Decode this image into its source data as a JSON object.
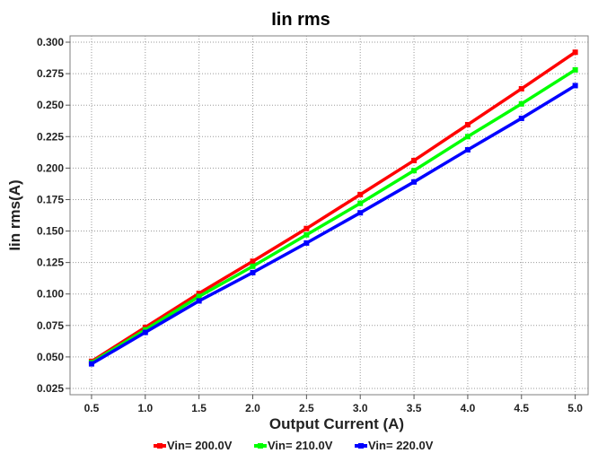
{
  "chart_data": {
    "type": "line",
    "title": "Iin rms",
    "xlabel": "Output Current (A)",
    "ylabel": "Iin rms(A)",
    "xlim": [
      0.3,
      5.12
    ],
    "ylim": [
      0.02,
      0.305
    ],
    "x": [
      0.5,
      1.0,
      1.5,
      2.0,
      2.5,
      3.0,
      3.5,
      4.0,
      4.5,
      5.0
    ],
    "x_tick_labels": [
      "0.5",
      "1.0",
      "1.5",
      "2.0",
      "2.5",
      "3.0",
      "3.5",
      "4.0",
      "4.5",
      "5.0"
    ],
    "y_ticks": [
      0.025,
      0.05,
      0.075,
      0.1,
      0.125,
      0.15,
      0.175,
      0.2,
      0.225,
      0.25,
      0.275,
      0.3
    ],
    "y_tick_labels": [
      "0.025",
      "0.050",
      "0.075",
      "0.100",
      "0.125",
      "0.150",
      "0.175",
      "0.200",
      "0.225",
      "0.250",
      "0.275",
      "0.300"
    ],
    "grid": true,
    "legend_position": "bottom",
    "series": [
      {
        "name": "Vin= 200.0V",
        "color": "#ff0000",
        "values": [
          0.0465,
          0.0735,
          0.1005,
          0.126,
          0.152,
          0.179,
          0.206,
          0.2345,
          0.263,
          0.292
        ]
      },
      {
        "name": "Vin= 210.0V",
        "color": "#00ff00",
        "values": [
          0.0455,
          0.0715,
          0.098,
          0.122,
          0.147,
          0.172,
          0.198,
          0.225,
          0.251,
          0.278
        ]
      },
      {
        "name": "Vin= 220.0V",
        "color": "#0000ff",
        "values": [
          0.0445,
          0.0695,
          0.0945,
          0.117,
          0.1405,
          0.1645,
          0.189,
          0.2145,
          0.2395,
          0.2655
        ]
      }
    ]
  }
}
